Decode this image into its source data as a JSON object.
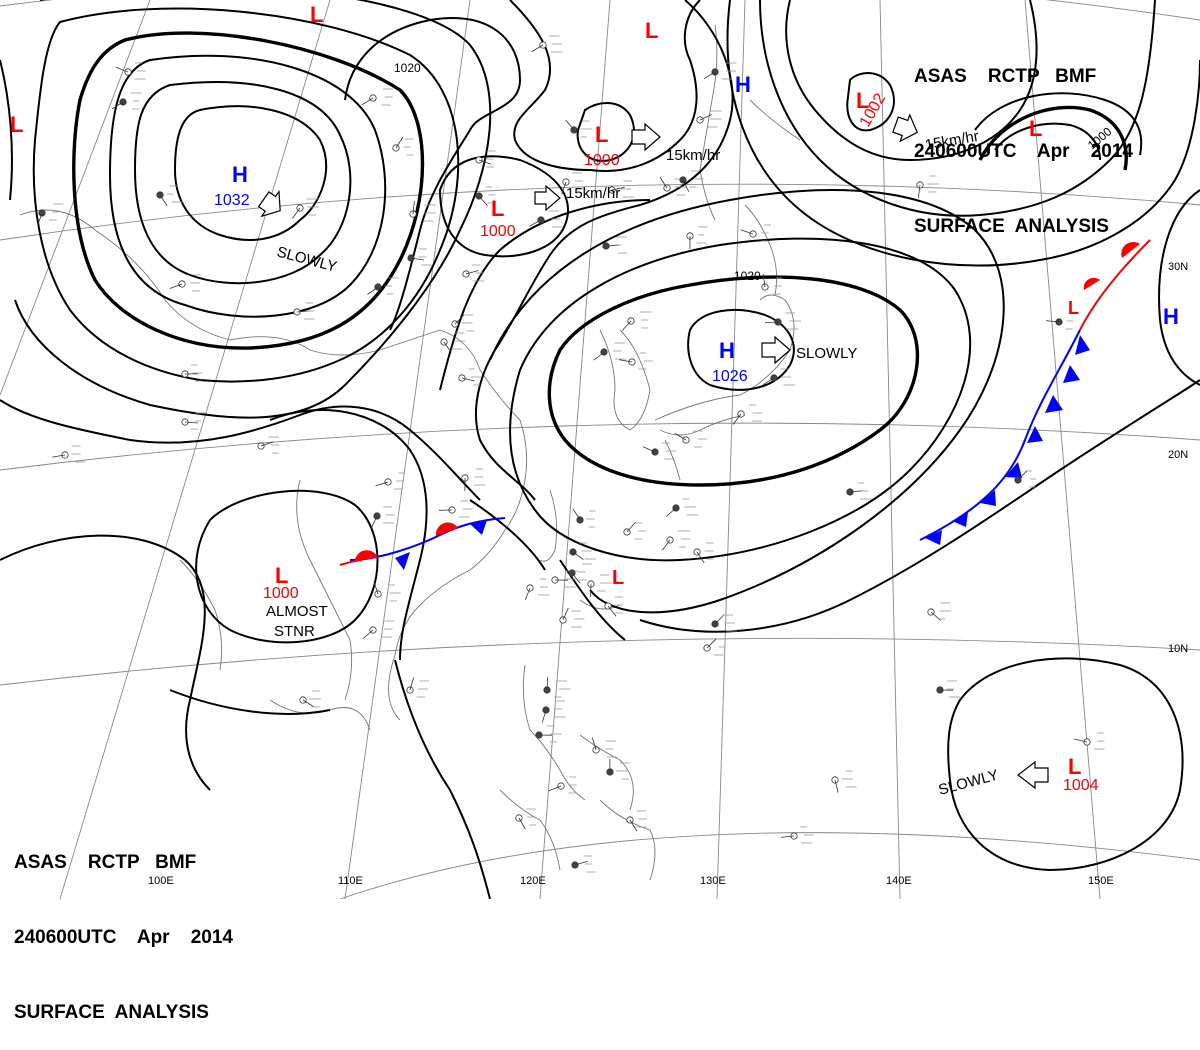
{
  "header": {
    "line1": "ASAS    RCTP   BMF",
    "line2": "240600UTC    Apr    2014",
    "line3": "SURFACE  ANALYSIS"
  },
  "colors": {
    "low": "#ff0000",
    "high": "#0000ff",
    "isobar": "#000000",
    "grid": "#888888",
    "coast": "#777777",
    "warm_front": "#ff0000",
    "cold_front": "#0000ff"
  },
  "pressure_centers": [
    {
      "type": "H",
      "value": "1032"
    },
    {
      "type": "H",
      "value": "1026"
    },
    {
      "type": "H",
      "value": ""
    },
    {
      "type": "H",
      "value": ""
    },
    {
      "type": "L",
      "value": "1000"
    },
    {
      "type": "L",
      "value": "1000"
    },
    {
      "type": "L",
      "value": "1000"
    },
    {
      "type": "L",
      "value": "1002"
    },
    {
      "type": "L",
      "value": "1004"
    },
    {
      "type": "L",
      "value": ""
    },
    {
      "type": "L",
      "value": ""
    },
    {
      "type": "L",
      "value": ""
    },
    {
      "type": "L",
      "value": ""
    },
    {
      "type": "L",
      "value": ""
    }
  ],
  "isobar_labels": [
    "1020",
    "1020",
    "1000"
  ],
  "motion_labels": [
    "SLOWLY",
    "15km/hr",
    "15km/hr",
    "15km/hr",
    "SLOWLY",
    "SLOWLY",
    "ALMOST",
    "STNR"
  ],
  "latitude_labels": [
    "30N",
    "20N",
    "10N"
  ],
  "longitude_labels": [
    "100E",
    "110E",
    "120E",
    "130E",
    "140E",
    "150E"
  ],
  "icon_names": [
    "high-pressure-icon",
    "low-pressure-icon",
    "movement-arrow-icon",
    "station-plot-icon",
    "warm-front-icon",
    "cold-front-icon"
  ]
}
